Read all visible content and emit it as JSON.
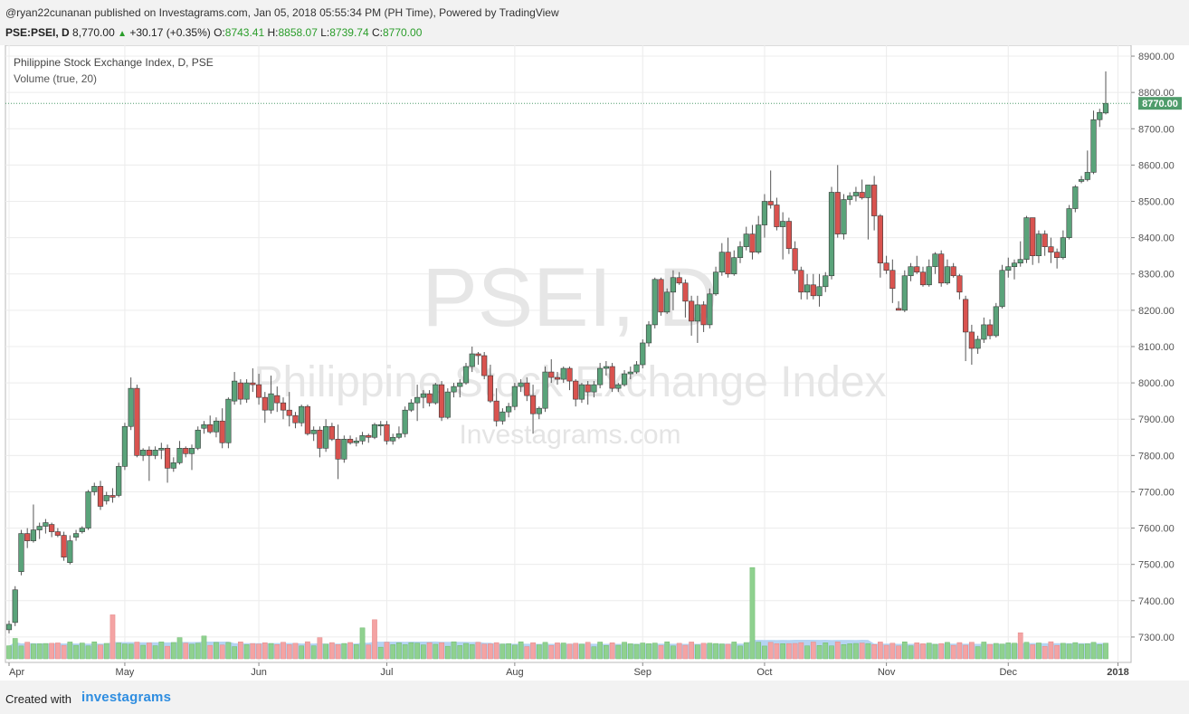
{
  "header": {
    "published_line": "@ryan22cunanan published on Investagrams.com, Jan 05, 2018 05:55:34 PM (PH Time), Powered by TradingView",
    "symbol": "PSE:PSEI, D",
    "last": "8,770.00",
    "change": "+30.17 (+0.35%)",
    "open_label": "O:",
    "open": "8743.41",
    "high_label": "H:",
    "high": "8858.07",
    "low_label": "L:",
    "low": "8739.74",
    "close_label": "C:",
    "close": "8770.00",
    "up_arrow": "▲"
  },
  "legend": {
    "title": "Philippine Stock Exchange Index, D, PSE",
    "indicator": "Volume (true, 20)"
  },
  "watermark": {
    "symbol": "PSEI, D",
    "name": "Philippine Stock Exchange Index",
    "site": "Investagrams.com"
  },
  "footer": {
    "created": "Created with",
    "brand": "investagrams"
  },
  "colors": {
    "up": "#5aa37a",
    "down": "#d9534f",
    "up_volume": "#8fd18f",
    "down_volume": "#f4a3a3",
    "ma_volume": "#a8cdf0",
    "last_price_label": "#4f9c6b"
  },
  "chart_data": {
    "type": "candlestick",
    "title": "Philippine Stock Exchange Index, D, PSE",
    "indicator": "Volume (true, 20)",
    "interval": "D",
    "last_price": 8770.0,
    "last_price_label": "8770.00",
    "y_axis": {
      "range": [
        7230,
        8930
      ],
      "ticks": [
        7300,
        7400,
        7500,
        7600,
        7700,
        7800,
        7900,
        8000,
        8100,
        8200,
        8300,
        8400,
        8500,
        8600,
        8700,
        8800,
        8900
      ],
      "tick_labels": [
        "7300.00",
        "7400.00",
        "7500.00",
        "7600.00",
        "7700.00",
        "7800.00",
        "7900.00",
        "8000.00",
        "8100.00",
        "8200.00",
        "8300.00",
        "8400.00",
        "8500.00",
        "8600.00",
        "8700.00",
        "8800.00",
        "8900.00"
      ]
    },
    "x_axis": {
      "labels": [
        {
          "label": "Apr",
          "index": 0
        },
        {
          "label": "May",
          "index": 19
        },
        {
          "label": "Jun",
          "index": 41
        },
        {
          "label": "Jul",
          "index": 62
        },
        {
          "label": "Aug",
          "index": 83
        },
        {
          "label": "Sep",
          "index": 104
        },
        {
          "label": "Oct",
          "index": 124
        },
        {
          "label": "Nov",
          "index": 144
        },
        {
          "label": "Dec",
          "index": 164
        },
        {
          "label": "2018",
          "index": 182
        }
      ]
    },
    "grid": true,
    "candles": [
      [
        7320,
        7345,
        7310,
        7335
      ],
      [
        7340,
        7440,
        7330,
        7430
      ],
      [
        7480,
        7595,
        7470,
        7585
      ],
      [
        7585,
        7600,
        7545,
        7565
      ],
      [
        7565,
        7665,
        7560,
        7595
      ],
      [
        7595,
        7615,
        7570,
        7605
      ],
      [
        7605,
        7625,
        7585,
        7615
      ],
      [
        7610,
        7615,
        7575,
        7590
      ],
      [
        7590,
        7600,
        7575,
        7580
      ],
      [
        7580,
        7590,
        7510,
        7520
      ],
      [
        7505,
        7580,
        7500,
        7565
      ],
      [
        7575,
        7595,
        7565,
        7585
      ],
      [
        7590,
        7605,
        7585,
        7600
      ],
      [
        7600,
        7705,
        7595,
        7700
      ],
      [
        7700,
        7725,
        7690,
        7715
      ],
      [
        7715,
        7730,
        7650,
        7660
      ],
      [
        7675,
        7700,
        7665,
        7690
      ],
      [
        7690,
        7710,
        7670,
        7685
      ],
      [
        7690,
        7780,
        7685,
        7770
      ],
      [
        7770,
        7890,
        7760,
        7880
      ],
      [
        7880,
        8015,
        7870,
        7985
      ],
      [
        7985,
        7995,
        7795,
        7800
      ],
      [
        7800,
        7820,
        7785,
        7815
      ],
      [
        7815,
        7825,
        7730,
        7800
      ],
      [
        7800,
        7825,
        7790,
        7815
      ],
      [
        7815,
        7835,
        7790,
        7820
      ],
      [
        7820,
        7830,
        7725,
        7765
      ],
      [
        7765,
        7795,
        7755,
        7780
      ],
      [
        7780,
        7840,
        7775,
        7820
      ],
      [
        7820,
        7825,
        7795,
        7805
      ],
      [
        7805,
        7830,
        7760,
        7820
      ],
      [
        7820,
        7880,
        7815,
        7870
      ],
      [
        7875,
        7895,
        7860,
        7885
      ],
      [
        7885,
        7910,
        7860,
        7865
      ],
      [
        7865,
        7905,
        7850,
        7895
      ],
      [
        7895,
        7930,
        7820,
        7835
      ],
      [
        7835,
        7960,
        7820,
        7955
      ],
      [
        7950,
        8030,
        7940,
        8005
      ],
      [
        8000,
        8010,
        7940,
        7955
      ],
      [
        7955,
        8010,
        7945,
        8000
      ],
      [
        8000,
        8040,
        7975,
        7995
      ],
      [
        7995,
        8025,
        7940,
        7960
      ],
      [
        7960,
        7975,
        7890,
        7925
      ],
      [
        7925,
        8020,
        7915,
        7970
      ],
      [
        7965,
        7990,
        7920,
        7945
      ],
      [
        7945,
        7960,
        7900,
        7925
      ],
      [
        7925,
        7975,
        7880,
        7910
      ],
      [
        7910,
        7920,
        7875,
        7890
      ],
      [
        7890,
        7940,
        7880,
        7935
      ],
      [
        7935,
        7940,
        7855,
        7860
      ],
      [
        7860,
        7880,
        7840,
        7870
      ],
      [
        7870,
        7880,
        7795,
        7820
      ],
      [
        7820,
        7900,
        7810,
        7880
      ],
      [
        7880,
        7890,
        7840,
        7845
      ],
      [
        7845,
        7885,
        7735,
        7790
      ],
      [
        7790,
        7855,
        7780,
        7845
      ],
      [
        7845,
        7855,
        7830,
        7835
      ],
      [
        7835,
        7850,
        7825,
        7840
      ],
      [
        7840,
        7865,
        7830,
        7855
      ],
      [
        7855,
        7860,
        7835,
        7850
      ],
      [
        7850,
        7890,
        7845,
        7885
      ],
      [
        7885,
        7895,
        7855,
        7885
      ],
      [
        7885,
        7895,
        7830,
        7840
      ],
      [
        7840,
        7860,
        7830,
        7850
      ],
      [
        7850,
        7880,
        7845,
        7860
      ],
      [
        7860,
        7935,
        7850,
        7925
      ],
      [
        7925,
        7955,
        7920,
        7945
      ],
      [
        7945,
        7995,
        7895,
        7960
      ],
      [
        7960,
        7980,
        7930,
        7970
      ],
      [
        7970,
        7980,
        7935,
        7945
      ],
      [
        7945,
        8000,
        7940,
        7995
      ],
      [
        7995,
        8005,
        7895,
        7905
      ],
      [
        7905,
        7985,
        7900,
        7975
      ],
      [
        7975,
        8000,
        7960,
        7990
      ],
      [
        7990,
        8010,
        7960,
        8000
      ],
      [
        8000,
        8055,
        7995,
        8045
      ],
      [
        8045,
        8100,
        8030,
        8080
      ],
      [
        8080,
        8085,
        8050,
        8075
      ],
      [
        8075,
        8085,
        8010,
        8020
      ],
      [
        8020,
        8050,
        7945,
        7950
      ],
      [
        7950,
        7985,
        7880,
        7895
      ],
      [
        7895,
        7930,
        7885,
        7920
      ],
      [
        7920,
        7945,
        7905,
        7935
      ],
      [
        7935,
        8000,
        7925,
        7990
      ],
      [
        7990,
        8010,
        7975,
        8000
      ],
      [
        8000,
        8015,
        7950,
        7965
      ],
      [
        7965,
        7995,
        7860,
        7915
      ],
      [
        7915,
        7935,
        7900,
        7930
      ],
      [
        7930,
        8045,
        7920,
        8030
      ],
      [
        8030,
        8065,
        8000,
        8015
      ],
      [
        8015,
        8030,
        7995,
        8010
      ],
      [
        8010,
        8045,
        8000,
        8040
      ],
      [
        8040,
        8045,
        7980,
        8005
      ],
      [
        8005,
        8010,
        7935,
        7955
      ],
      [
        7955,
        8000,
        7945,
        7995
      ],
      [
        7995,
        8005,
        7940,
        7975
      ],
      [
        7975,
        8005,
        7960,
        7995
      ],
      [
        7995,
        8055,
        7985,
        8040
      ],
      [
        8040,
        8060,
        8020,
        8045
      ],
      [
        8045,
        8055,
        7975,
        7985
      ],
      [
        7985,
        8000,
        7975,
        7995
      ],
      [
        7995,
        8035,
        7990,
        8025
      ],
      [
        8025,
        8045,
        8010,
        8030
      ],
      [
        8030,
        8060,
        8025,
        8050
      ],
      [
        8050,
        8120,
        8040,
        8110
      ],
      [
        8110,
        8170,
        8100,
        8160
      ],
      [
        8160,
        8290,
        8150,
        8285
      ],
      [
        8285,
        8290,
        8185,
        8195
      ],
      [
        8195,
        8260,
        8190,
        8250
      ],
      [
        8250,
        8310,
        8200,
        8290
      ],
      [
        8290,
        8305,
        8270,
        8275
      ],
      [
        8275,
        8285,
        8180,
        8225
      ],
      [
        8225,
        8240,
        8130,
        8170
      ],
      [
        8170,
        8240,
        8110,
        8215
      ],
      [
        8215,
        8225,
        8140,
        8160
      ],
      [
        8160,
        8260,
        8150,
        8245
      ],
      [
        8245,
        8320,
        8240,
        8305
      ],
      [
        8305,
        8385,
        8295,
        8360
      ],
      [
        8360,
        8400,
        8290,
        8300
      ],
      [
        8300,
        8365,
        8295,
        8345
      ],
      [
        8345,
        8390,
        8330,
        8375
      ],
      [
        8375,
        8430,
        8365,
        8410
      ],
      [
        8410,
        8435,
        8340,
        8360
      ],
      [
        8360,
        8460,
        8355,
        8435
      ],
      [
        8435,
        8520,
        8400,
        8500
      ],
      [
        8500,
        8585,
        8480,
        8490
      ],
      [
        8490,
        8510,
        8420,
        8430
      ],
      [
        8430,
        8470,
        8340,
        8445
      ],
      [
        8445,
        8455,
        8355,
        8370
      ],
      [
        8370,
        8390,
        8300,
        8310
      ],
      [
        8310,
        8320,
        8230,
        8250
      ],
      [
        8250,
        8300,
        8230,
        8270
      ],
      [
        8270,
        8300,
        8230,
        8240
      ],
      [
        8240,
        8300,
        8210,
        8265
      ],
      [
        8265,
        8305,
        8250,
        8295
      ],
      [
        8295,
        8540,
        8285,
        8525
      ],
      [
        8525,
        8600,
        8400,
        8410
      ],
      [
        8410,
        8520,
        8395,
        8505
      ],
      [
        8505,
        8525,
        8490,
        8515
      ],
      [
        8515,
        8540,
        8500,
        8525
      ],
      [
        8525,
        8560,
        8505,
        8510
      ],
      [
        8510,
        8545,
        8395,
        8545
      ],
      [
        8545,
        8570,
        8420,
        8460
      ],
      [
        8460,
        8465,
        8290,
        8330
      ],
      [
        8330,
        8350,
        8300,
        8310
      ],
      [
        8310,
        8340,
        8220,
        8260
      ],
      [
        8205,
        8225,
        8200,
        8200
      ],
      [
        8200,
        8310,
        8195,
        8295
      ],
      [
        8295,
        8330,
        8280,
        8320
      ],
      [
        8320,
        8350,
        8300,
        8305
      ],
      [
        8305,
        8320,
        8265,
        8270
      ],
      [
        8270,
        8340,
        8265,
        8320
      ],
      [
        8320,
        8360,
        8300,
        8355
      ],
      [
        8355,
        8365,
        8265,
        8275
      ],
      [
        8275,
        8340,
        8270,
        8320
      ],
      [
        8320,
        8330,
        8290,
        8295
      ],
      [
        8295,
        8300,
        8230,
        8250
      ],
      [
        8230,
        8240,
        8060,
        8140
      ],
      [
        8140,
        8160,
        8050,
        8095
      ],
      [
        8095,
        8130,
        8080,
        8120
      ],
      [
        8120,
        8180,
        8110,
        8160
      ],
      [
        8160,
        8175,
        8120,
        8130
      ],
      [
        8130,
        8220,
        8125,
        8210
      ],
      [
        8210,
        8325,
        8205,
        8310
      ],
      [
        8310,
        8345,
        8290,
        8320
      ],
      [
        8320,
        8340,
        8285,
        8330
      ],
      [
        8330,
        8390,
        8320,
        8340
      ],
      [
        8340,
        8460,
        8330,
        8455
      ],
      [
        8455,
        8455,
        8325,
        8350
      ],
      [
        8350,
        8420,
        8330,
        8410
      ],
      [
        8410,
        8420,
        8350,
        8375
      ],
      [
        8375,
        8400,
        8330,
        8360
      ],
      [
        8360,
        8370,
        8315,
        8345
      ],
      [
        8345,
        8420,
        8340,
        8400
      ],
      [
        8400,
        8490,
        8395,
        8480
      ],
      [
        8480,
        8545,
        8470,
        8540
      ],
      [
        8555,
        8570,
        8550,
        8560
      ],
      [
        8560,
        8640,
        8555,
        8580
      ],
      [
        8580,
        8750,
        8575,
        8725
      ],
      [
        8725,
        8755,
        8705,
        8745
      ],
      [
        8743.41,
        8858.07,
        8739.74,
        8770.0
      ]
    ],
    "volume_spikes": [
      {
        "index": 1,
        "direction": "up",
        "relative": 1.25
      },
      {
        "index": 17,
        "direction": "down",
        "relative": 2.7
      },
      {
        "index": 28,
        "direction": "up",
        "relative": 1.3
      },
      {
        "index": 32,
        "direction": "up",
        "relative": 1.4
      },
      {
        "index": 51,
        "direction": "down",
        "relative": 1.3
      },
      {
        "index": 58,
        "direction": "up",
        "relative": 1.9
      },
      {
        "index": 60,
        "direction": "down",
        "relative": 2.4
      },
      {
        "index": 122,
        "direction": "up",
        "relative": 5.6
      },
      {
        "index": 166,
        "direction": "down",
        "relative": 1.6
      }
    ]
  }
}
